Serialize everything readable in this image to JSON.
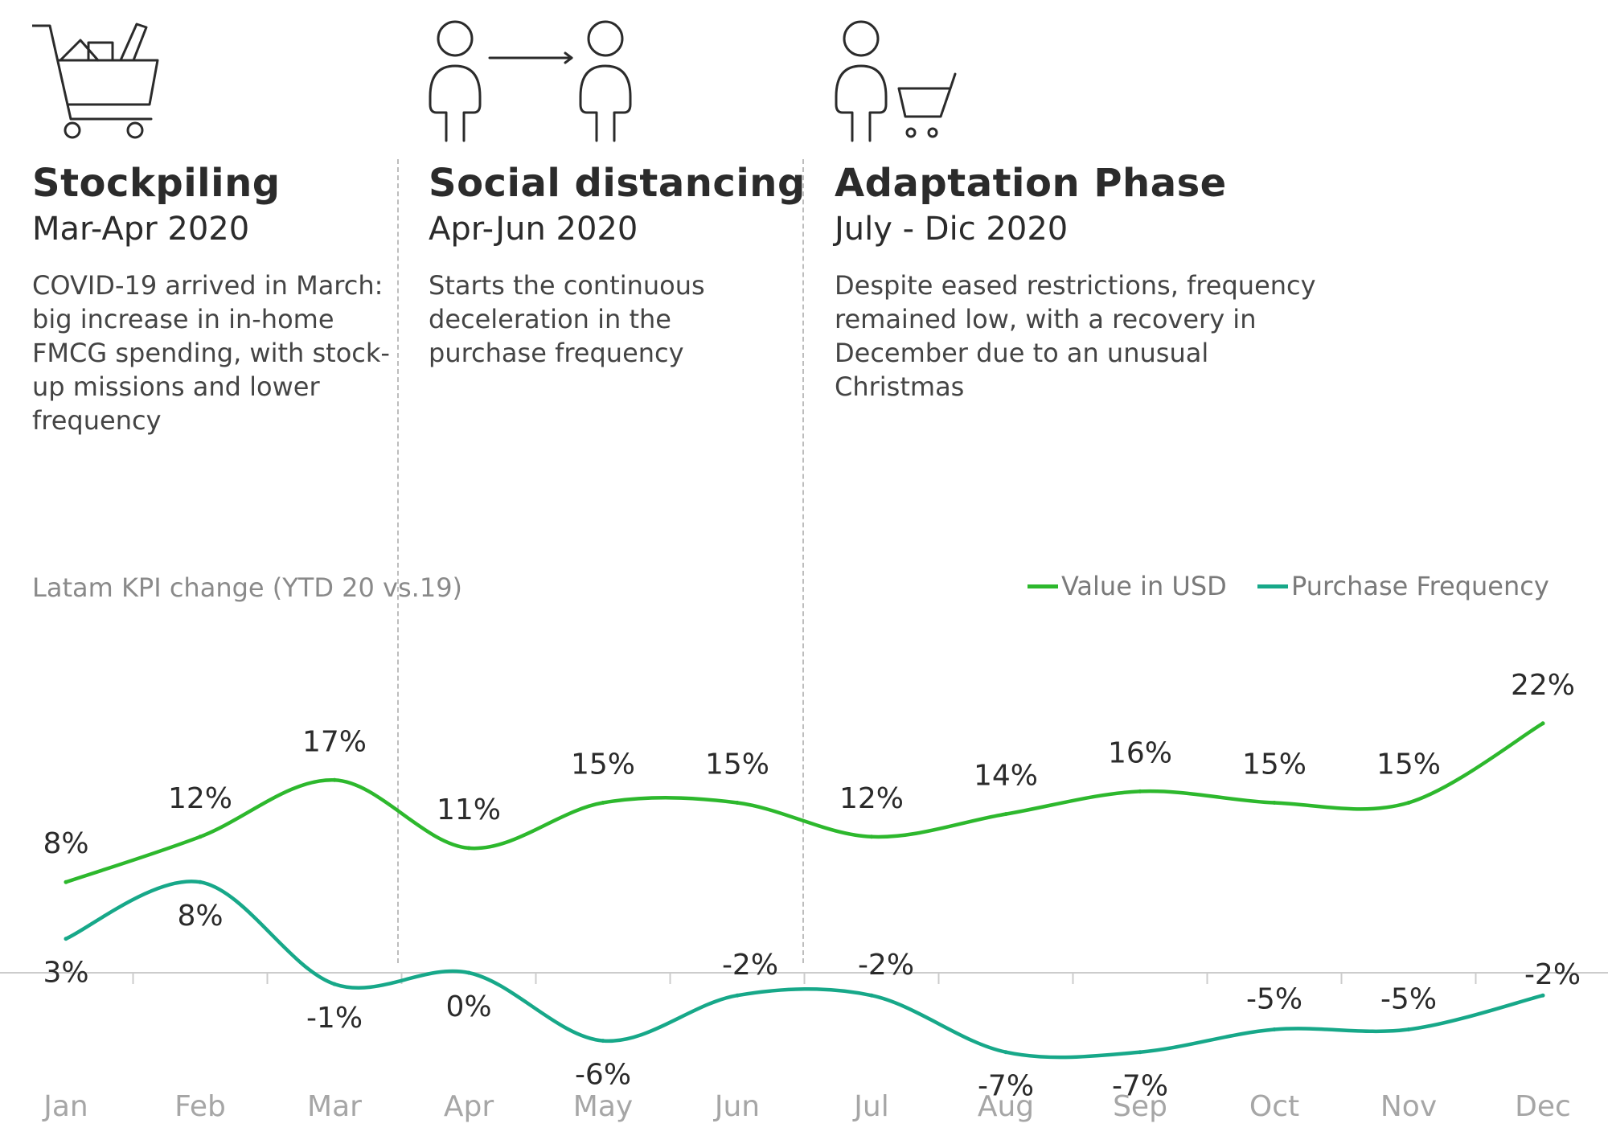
{
  "phases": [
    {
      "title": "Stockpiling",
      "period": "Mar-Apr 2020",
      "description": "COVID-19 arrived in March: big increase in in-home FMCG spending, with stock-up missions and lower frequency",
      "icon": "shopping-cart-full-icon"
    },
    {
      "title": "Social distancing",
      "period": "Apr-Jun 2020",
      "description": "Starts the continuous deceleration in the purchase frequency",
      "icon": "two-people-distance-icon"
    },
    {
      "title": "Adaptation Phase",
      "period": "July - Dic 2020",
      "description": "Despite eased restrictions, frequency remained low, with a recovery in December due to an unusual Christmas",
      "icon": "person-with-cart-icon"
    }
  ],
  "colors": {
    "value_usd": "#2db82d",
    "frequency": "#17a889",
    "divider": "#bdbdbd",
    "axis": "#cccccc"
  },
  "chart_data": {
    "type": "line",
    "subtitle": "Latam KPI change (YTD 20 vs.19)",
    "categories": [
      "Jan",
      "Feb",
      "Mar",
      "Apr",
      "May",
      "Jun",
      "Jul",
      "Aug",
      "Sep",
      "Oct",
      "Nov",
      "Dec"
    ],
    "series": [
      {
        "name": "Value in USD",
        "values": [
          8,
          12,
          17,
          11,
          15,
          15,
          12,
          14,
          16,
          15,
          15,
          22
        ],
        "labels": [
          "8%",
          "12%",
          "17%",
          "11%",
          "15%",
          "15%",
          "12%",
          "14%",
          "16%",
          "15%",
          "15%",
          "22%"
        ]
      },
      {
        "name": "Purchase Frequency",
        "values": [
          3,
          8,
          -1,
          0,
          -6,
          -2,
          -2,
          -7,
          -7,
          -5,
          -5,
          -2
        ],
        "labels": [
          "3%",
          "8%",
          "-1%",
          "0%",
          "-6%",
          "-2%",
          "-2%",
          "-7%",
          "-7%",
          "-5%",
          "-5%",
          "-2%"
        ]
      }
    ],
    "legend_position": "top-right",
    "grid": false
  }
}
